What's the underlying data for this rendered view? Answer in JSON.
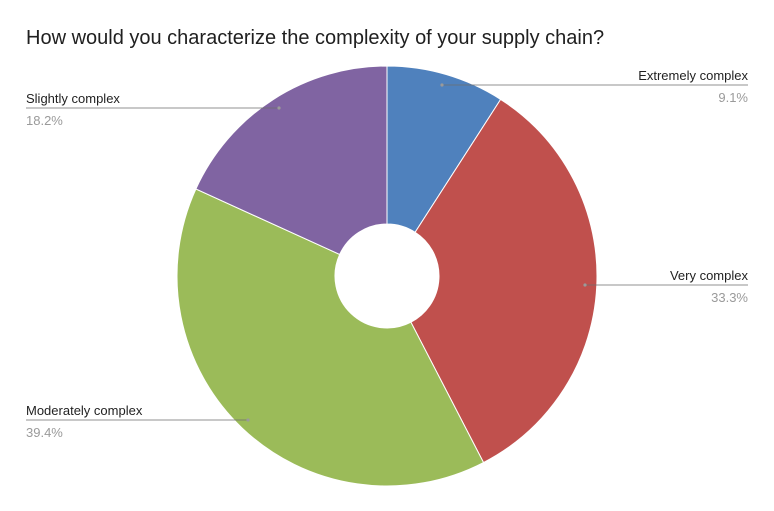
{
  "chart_data": {
    "type": "pie",
    "title": "How would you characterize the complexity of your supply chain?",
    "donut": true,
    "slices": [
      {
        "label": "Extremely complex",
        "value": 9.1,
        "percent_label": "9.1%",
        "color": "#4f81bd"
      },
      {
        "label": "Very complex",
        "value": 33.3,
        "percent_label": "33.3%",
        "color": "#c0504d"
      },
      {
        "label": "Moderately complex",
        "value": 39.4,
        "percent_label": "39.4%",
        "color": "#9bbb59"
      },
      {
        "label": "Slightly complex",
        "value": 18.2,
        "percent_label": "18.2%",
        "color": "#8064a2"
      }
    ],
    "legend": "none",
    "label_placement": "outside-with-leaders"
  }
}
